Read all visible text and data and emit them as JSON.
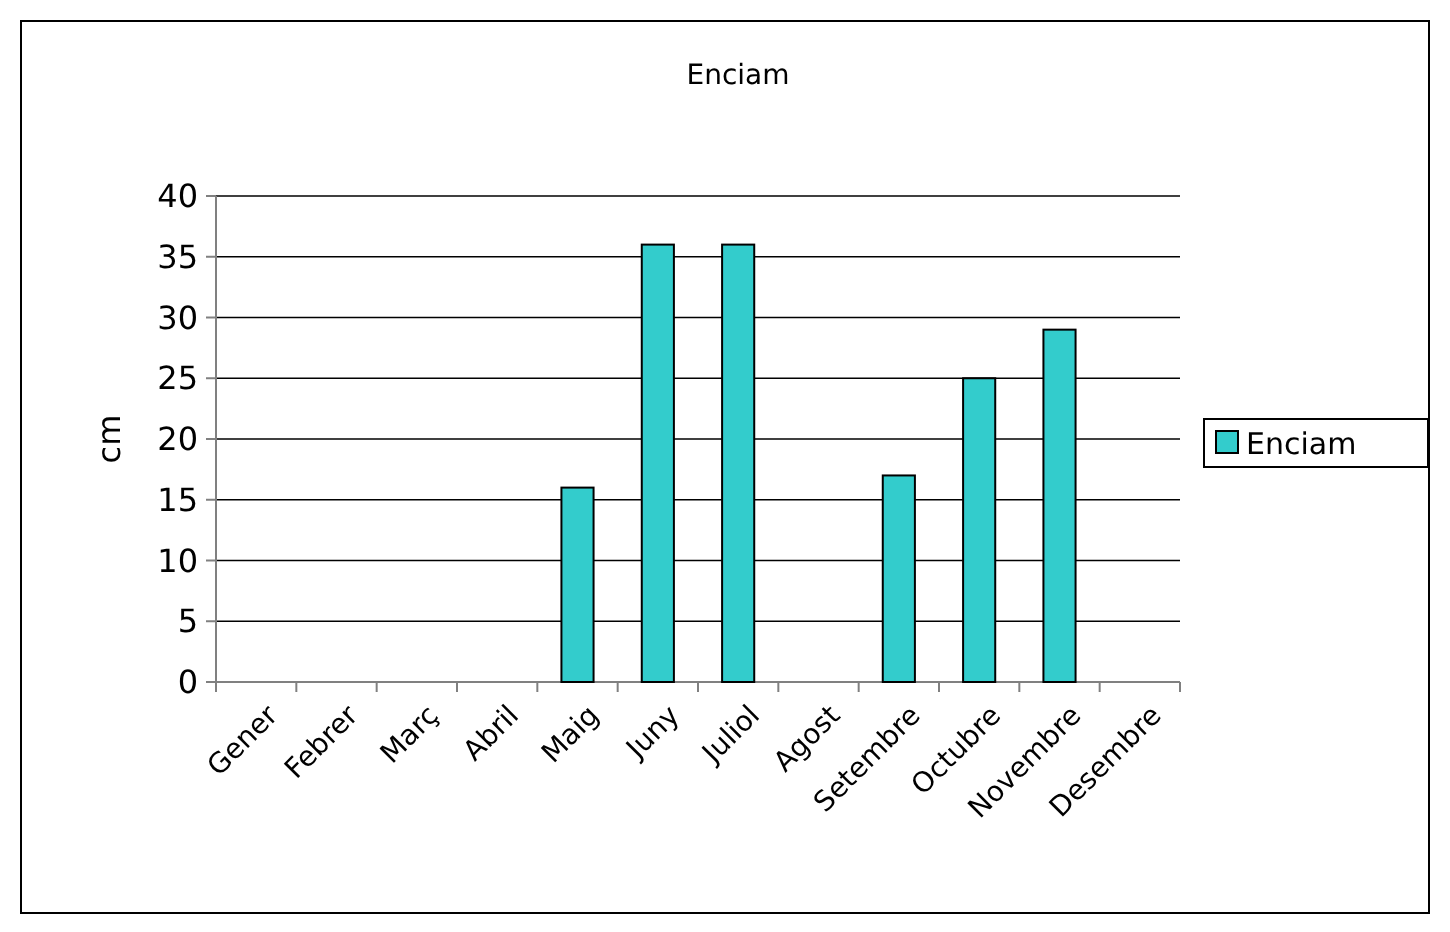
{
  "chart_data": {
    "type": "bar",
    "title": "Enciam",
    "ylabel": "cm",
    "categories": [
      "Gener",
      "Febrer",
      "Març",
      "Abril",
      "Maig",
      "Juny",
      "Juliol",
      "Agost",
      "Setembre",
      "Octubre",
      "Novembre",
      "Desembre"
    ],
    "series": [
      {
        "name": "Enciam",
        "color": "#33cccc",
        "values": [
          null,
          null,
          null,
          null,
          16,
          36,
          36,
          null,
          17,
          25,
          29,
          null
        ]
      }
    ],
    "ylim": [
      0,
      40
    ],
    "yticks": [
      0,
      5,
      10,
      15,
      20,
      25,
      30,
      35,
      40
    ],
    "grid": "y",
    "legend": "right"
  }
}
